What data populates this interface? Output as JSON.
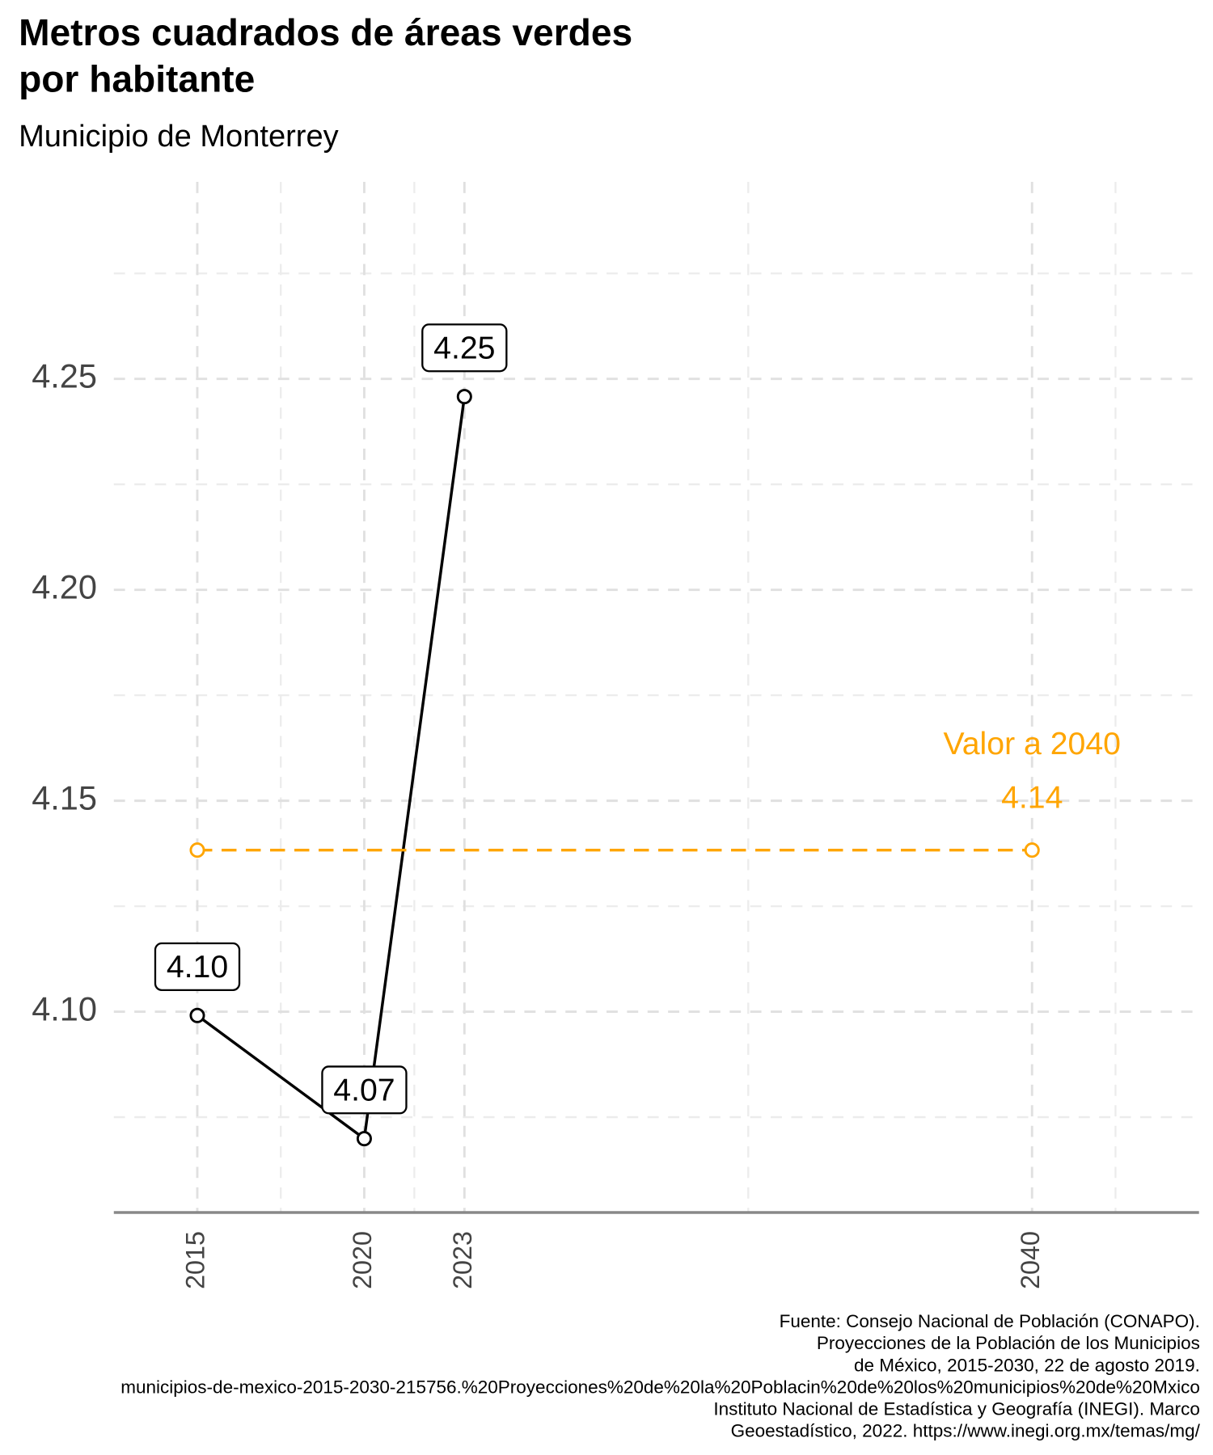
{
  "chart_data": {
    "type": "line",
    "title_lines": [
      "Metros cuadrados de áreas verdes",
      "por habitante"
    ],
    "subtitle": "Municipio de Monterrey",
    "xlim": [
      2012.5,
      2045
    ],
    "xticks": [
      2015,
      2020,
      2023,
      2040
    ],
    "minor_xticks": [
      2017.5,
      2021.5,
      2031.5,
      2042.5
    ],
    "ylim": [
      4.0524,
      4.2967
    ],
    "yticks": [
      {
        "value": 4.1,
        "label": "4.10"
      },
      4.15,
      {
        "value": 4.2,
        "label": "4.20"
      },
      4.25
    ],
    "minor_yticks": [
      4.075,
      4.125,
      4.175,
      4.225,
      4.275
    ],
    "grid": true,
    "series": [
      {
        "color": "#000000",
        "x": [
          2015,
          2020,
          2023
        ],
        "values": [
          4.0991,
          4.0699,
          4.2458
        ],
        "value_labels": [
          "4.10",
          "4.07",
          "4.25"
        ]
      },
      {
        "color": "#FFA500",
        "dashed": true,
        "x": [
          2015,
          2040
        ],
        "values": [
          4.1383,
          4.1383
        ],
        "value_labels": [
          null,
          "4.14"
        ]
      }
    ],
    "annotation": "Valor a 2040",
    "caption_lines": [
      "Fuente: Consejo Nacional de Población (CONAPO).",
      "Proyecciones de la Población de los Municipios",
      "de México, 2015-2030, 22 de agosto 2019.",
      "municipios-de-mexico-2015-2030-215756.%20Proyecciones%20de%20la%20Poblacin%20de%20los%20municipios%20de%20Mxico",
      "Instituto Nacional de Estadística y Geografía (INEGI). Marco",
      "Geoestadístico, 2022. https://www.inegi.org.mx/temas/mg/"
    ]
  }
}
